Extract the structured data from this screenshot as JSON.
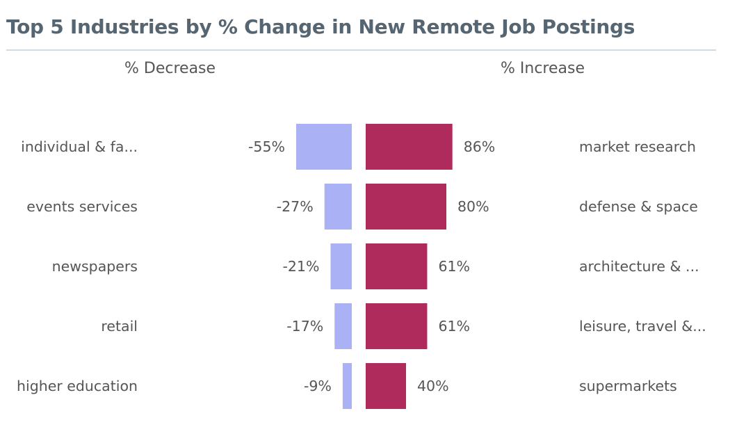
{
  "title": "Top 5 Industries by % Change in New Remote Job Postings",
  "decrease_header": "% Decrease",
  "increase_header": "% Increase",
  "chart_data": {
    "type": "bar",
    "title": "Top 5 Industries by % Change in New Remote Job Postings",
    "orientation": "horizontal-diverging",
    "grid": false,
    "legend": "none",
    "series": [
      {
        "name": "% Decrease",
        "color": "#aab1f5",
        "categories": [
          "individual & fa...",
          "events services",
          "newspapers",
          "retail",
          "higher education"
        ],
        "values": [
          -55,
          -27,
          -21,
          -17,
          -9
        ],
        "value_labels": [
          "-55%",
          "-27%",
          "-21%",
          "-17%",
          "-9%"
        ]
      },
      {
        "name": "% Increase",
        "color": "#ae2b5c",
        "categories": [
          "market research",
          "defense & space",
          "architecture & ...",
          "leisure, travel &...",
          "supermarkets"
        ],
        "values": [
          86,
          80,
          61,
          61,
          40
        ],
        "value_labels": [
          "86%",
          "80%",
          "61%",
          "61%",
          "40%"
        ]
      }
    ]
  }
}
